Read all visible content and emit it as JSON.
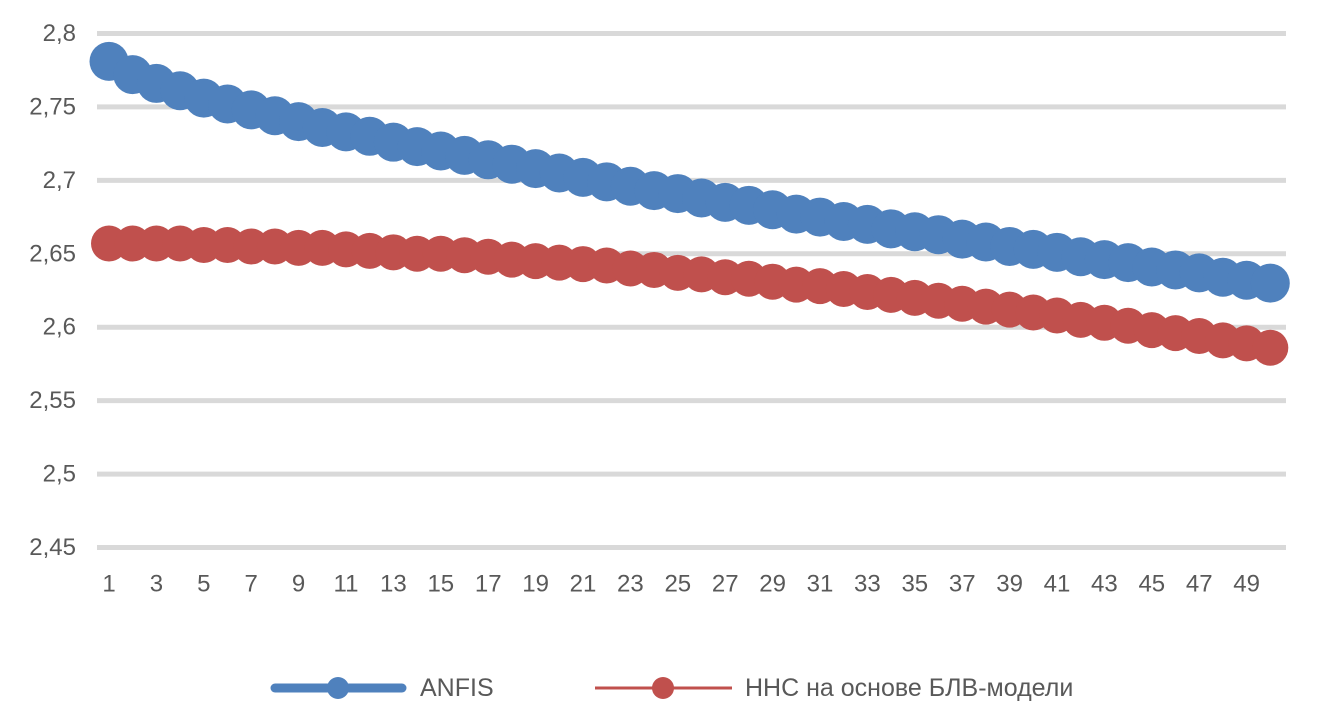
{
  "chart_data": {
    "type": "line",
    "title": "",
    "xlabel": "",
    "ylabel": "",
    "ylim": [
      2.45,
      2.8
    ],
    "y_tick_step": 0.05,
    "decimal_separator": ",",
    "grid": "horizontal",
    "legend_position": "bottom",
    "x": [
      1,
      2,
      3,
      4,
      5,
      6,
      7,
      8,
      9,
      10,
      11,
      12,
      13,
      14,
      15,
      16,
      17,
      18,
      19,
      20,
      21,
      22,
      23,
      24,
      25,
      26,
      27,
      28,
      29,
      30,
      31,
      32,
      33,
      34,
      35,
      36,
      37,
      38,
      39,
      40,
      41,
      42,
      43,
      44,
      45,
      46,
      47,
      48,
      49,
      50
    ],
    "x_axis": {
      "tick_labels": [
        "1",
        "3",
        "5",
        "7",
        "9",
        "11",
        "13",
        "15",
        "17",
        "19",
        "21",
        "23",
        "25",
        "27",
        "29",
        "31",
        "33",
        "35",
        "37",
        "39",
        "41",
        "43",
        "45",
        "47",
        "49"
      ]
    },
    "y_axis": {
      "ticks": [
        {
          "value": 2.8,
          "label": "2,8"
        },
        {
          "value": 2.75,
          "label": "2,75"
        },
        {
          "value": 2.7,
          "label": "2,7"
        },
        {
          "value": 2.65,
          "label": "2,65"
        },
        {
          "value": 2.6,
          "label": "2,6"
        },
        {
          "value": 2.55,
          "label": "2,55"
        },
        {
          "value": 2.5,
          "label": "2,5"
        },
        {
          "value": 2.45,
          "label": "2,45"
        }
      ]
    },
    "series": [
      {
        "name": "ANFIS",
        "color": "#4F81BD",
        "values": [
          2.781,
          2.772,
          2.766,
          2.761,
          2.756,
          2.752,
          2.748,
          2.744,
          2.74,
          2.736,
          2.733,
          2.73,
          2.726,
          2.723,
          2.72,
          2.717,
          2.714,
          2.711,
          2.708,
          2.705,
          2.702,
          2.699,
          2.696,
          2.693,
          2.691,
          2.688,
          2.685,
          2.683,
          2.68,
          2.677,
          2.675,
          2.672,
          2.67,
          2.667,
          2.665,
          2.663,
          2.66,
          2.658,
          2.655,
          2.653,
          2.651,
          2.648,
          2.646,
          2.644,
          2.641,
          2.639,
          2.637,
          2.634,
          2.632,
          2.63
        ]
      },
      {
        "name": "ННС на основе БЛВ-модели",
        "color": "#C0504D",
        "values": [
          2.657,
          2.657,
          2.657,
          2.657,
          2.656,
          2.656,
          2.655,
          2.655,
          2.654,
          2.654,
          2.653,
          2.652,
          2.651,
          2.65,
          2.65,
          2.649,
          2.648,
          2.646,
          2.645,
          2.644,
          2.643,
          2.642,
          2.64,
          2.639,
          2.637,
          2.636,
          2.634,
          2.633,
          2.631,
          2.629,
          2.628,
          2.626,
          2.624,
          2.622,
          2.62,
          2.618,
          2.616,
          2.614,
          2.612,
          2.61,
          2.608,
          2.605,
          2.603,
          2.601,
          2.598,
          2.596,
          2.594,
          2.591,
          2.589,
          2.586
        ]
      }
    ],
    "colors": {
      "gridline": "#D9D9D9",
      "tick_text": "#595959",
      "legend_text": "#595959",
      "background": "#FFFFFF"
    }
  }
}
